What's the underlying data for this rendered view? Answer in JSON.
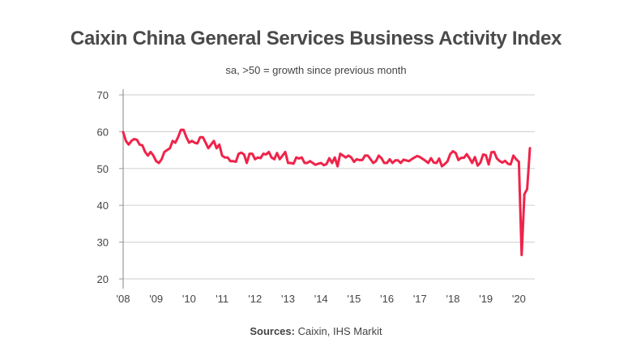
{
  "chart_data": {
    "type": "line",
    "title": "Caixin China General Services Business Activity Index",
    "subtitle": "sa, >50 = growth since previous month",
    "source_label": "Sources:",
    "source_text": "Caixin, IHS Markit",
    "xlabel": "",
    "ylabel": "",
    "ylim": [
      20,
      70
    ],
    "yticks": [
      70,
      60,
      50,
      40,
      30,
      20
    ],
    "xticks": [
      "'08",
      "'09",
      "'10",
      "'11",
      "'12",
      "'13",
      "'14",
      "'15",
      "'16",
      "'17",
      "'18",
      "'19",
      "'20"
    ],
    "grid": true,
    "line_color": "#ef2349",
    "start": "2008-01",
    "frequency": "monthly",
    "values": [
      59.9,
      57.5,
      56.5,
      57.5,
      58,
      57.8,
      56.5,
      56.3,
      54.5,
      53.5,
      54.5,
      53.5,
      52,
      51.5,
      52.5,
      54.5,
      55,
      55.5,
      57.5,
      57,
      58.5,
      60.5,
      60.5,
      58.5,
      57,
      57.5,
      57,
      56.8,
      58.5,
      58.5,
      57,
      55.5,
      56.5,
      57.5,
      55.5,
      56.5,
      53.5,
      53,
      53,
      52,
      52,
      51.8,
      54,
      54.3,
      53.8,
      51.5,
      54,
      54,
      52.5,
      53,
      52.8,
      54,
      53.8,
      54.5,
      53,
      52.5,
      54.2,
      52.5,
      53.5,
      54.5,
      51.5,
      51.5,
      51.3,
      53,
      52.7,
      53,
      51.5,
      51.5,
      52,
      51.5,
      51,
      51.3,
      51.5,
      50.9,
      51.2,
      52.8,
      51.5,
      53,
      50.6,
      54,
      53.5,
      53,
      53.5,
      53,
      51.8,
      52.5,
      52.3,
      52.3,
      53.5,
      53.5,
      52.5,
      51.5,
      52,
      53.5,
      52.8,
      51.5,
      51.5,
      52.5,
      51.5,
      52.2,
      52.2,
      51.5,
      52.4,
      52.2,
      52,
      52.5,
      53,
      53.4,
      53.1,
      52.6,
      52.1,
      51.5,
      52.8,
      51.6,
      51.5,
      52.7,
      50.6,
      51.2,
      51.9,
      53.9,
      54.7,
      54.2,
      52.3,
      52.9,
      52.9,
      53.9,
      52.8,
      51.5,
      53.1,
      50.8,
      51.6,
      53.8,
      53.6,
      51.1,
      54.4,
      54.5,
      52.7,
      52,
      51.6,
      52.1,
      51.3,
      51.1,
      53.5,
      52.5,
      51.8,
      26.5,
      43,
      44.4,
      55.5
    ]
  }
}
